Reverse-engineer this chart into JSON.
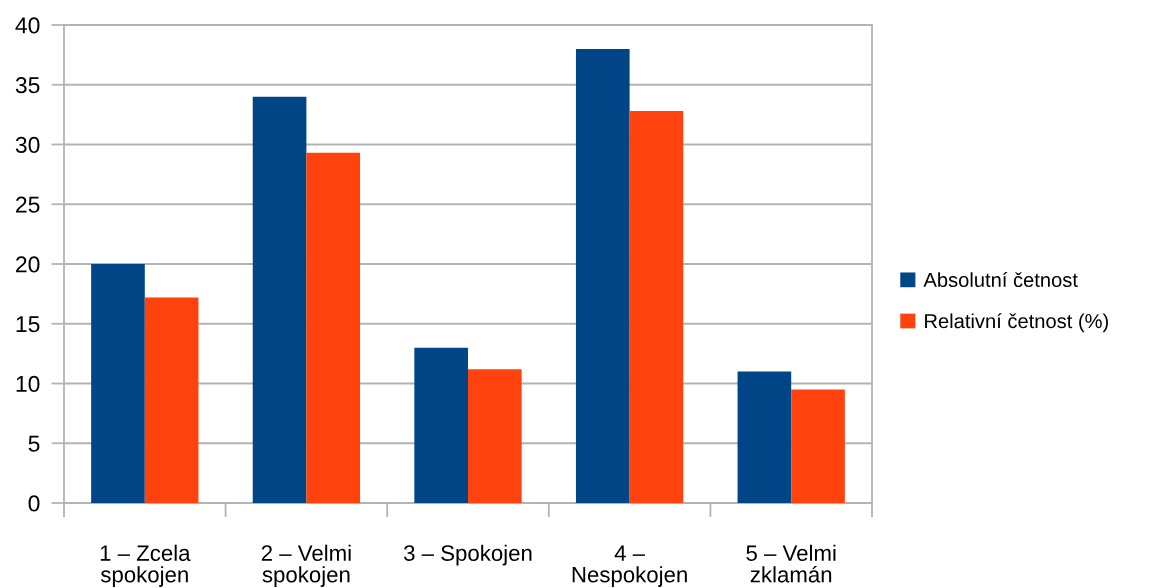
{
  "chart_data": {
    "type": "bar",
    "categories": [
      "1 – Zcela\nspokojen",
      "2 – Velmi\nspokojen",
      "3 – Spokojen",
      "4 –\nNespokojen",
      "5 – Velmi\nzklamán"
    ],
    "series": [
      {
        "name": "Absolutní četnost",
        "color": "#004586",
        "values": [
          20,
          34,
          13,
          38,
          11
        ]
      },
      {
        "name": "Relativní četnost (%)",
        "color": "#ff420e",
        "values": [
          17.2,
          29.3,
          11.2,
          32.8,
          9.5
        ]
      }
    ],
    "ylim": [
      0,
      40
    ],
    "yticks": [
      0,
      5,
      10,
      15,
      20,
      25,
      30,
      35,
      40
    ],
    "grid": "y",
    "legend": "right"
  }
}
